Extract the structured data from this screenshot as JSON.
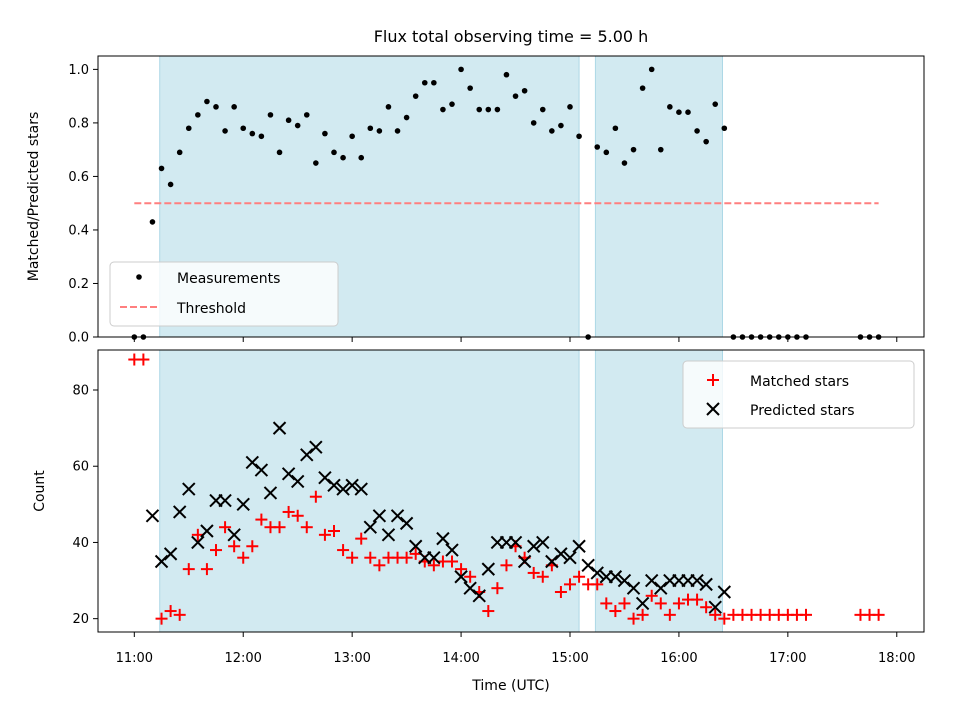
{
  "colors": {
    "shade": "#add8e6",
    "measurement": "#000000",
    "threshold": "#ff7f7f",
    "matched": "#ff0000",
    "predicted": "#000000"
  },
  "chart_data": [
    {
      "type": "scatter",
      "title": "Flux total observing time = 5.00 h",
      "xlabel": "",
      "ylabel": "Matched/Predicted stars",
      "xlim": [
        "10:40",
        "18:15"
      ],
      "ylim": [
        0,
        1.05
      ],
      "yticks": [
        "0.0",
        "0.2",
        "0.4",
        "0.6",
        "0.8",
        "1.0"
      ],
      "shaded_intervals": [
        [
          "11:14",
          "15:05"
        ],
        [
          "15:14",
          "16:24"
        ]
      ],
      "threshold": {
        "name": "Threshold",
        "value": 0.5,
        "x_range": [
          "11:00",
          "17:50"
        ]
      },
      "series": [
        {
          "name": "Measurements",
          "x": [
            "11:00",
            "11:05",
            "11:10",
            "11:15",
            "11:20",
            "11:25",
            "11:30",
            "11:35",
            "11:40",
            "11:45",
            "11:50",
            "11:55",
            "12:00",
            "12:05",
            "12:10",
            "12:15",
            "12:20",
            "12:25",
            "12:30",
            "12:35",
            "12:40",
            "12:45",
            "12:50",
            "12:55",
            "13:00",
            "13:05",
            "13:10",
            "13:15",
            "13:20",
            "13:25",
            "13:30",
            "13:35",
            "13:40",
            "13:45",
            "13:50",
            "13:55",
            "14:00",
            "14:05",
            "14:10",
            "14:15",
            "14:20",
            "14:25",
            "14:30",
            "14:35",
            "14:40",
            "14:45",
            "14:50",
            "14:55",
            "15:00",
            "15:05",
            "15:10",
            "15:15",
            "15:20",
            "15:25",
            "15:30",
            "15:35",
            "15:40",
            "15:45",
            "15:50",
            "15:55",
            "16:00",
            "16:05",
            "16:10",
            "16:15",
            "16:20",
            "16:25",
            "16:30",
            "16:35",
            "16:40",
            "16:45",
            "16:50",
            "16:55",
            "17:00",
            "17:05",
            "17:10",
            "17:40",
            "17:45",
            "17:50"
          ],
          "values": [
            0.0,
            0.0,
            0.43,
            0.63,
            0.57,
            0.69,
            0.78,
            0.83,
            0.88,
            0.86,
            0.77,
            0.86,
            0.78,
            0.76,
            0.75,
            0.83,
            0.69,
            0.81,
            0.79,
            0.83,
            0.65,
            0.76,
            0.69,
            0.67,
            0.75,
            0.67,
            0.78,
            0.77,
            0.86,
            0.77,
            0.82,
            0.9,
            0.95,
            0.95,
            0.85,
            0.87,
            1.0,
            0.93,
            0.85,
            0.85,
            0.85,
            0.98,
            0.9,
            0.92,
            0.8,
            0.85,
            0.77,
            0.79,
            0.86,
            0.75,
            0.0,
            0.71,
            0.69,
            0.78,
            0.65,
            0.7,
            0.93,
            1.0,
            0.7,
            0.86,
            0.84,
            0.84,
            0.77,
            0.73,
            0.87,
            0.78,
            0.0,
            0.0,
            0.0,
            0.0,
            0.0,
            0.0,
            0.0,
            0.0,
            0.0,
            0.0,
            0.0,
            0.0
          ]
        }
      ],
      "legend": {
        "position": "lower-left",
        "entries": [
          "Measurements",
          "Threshold"
        ]
      }
    },
    {
      "type": "scatter",
      "title": "",
      "xlabel": "Time (UTC)",
      "ylabel": "Count",
      "xlim": [
        "10:40",
        "18:15"
      ],
      "ylim": [
        16.5,
        90.5
      ],
      "xticks": [
        "11:00",
        "12:00",
        "13:00",
        "14:00",
        "15:00",
        "16:00",
        "17:00",
        "18:00"
      ],
      "yticks": [
        "20",
        "40",
        "60",
        "80"
      ],
      "shaded_intervals": [
        [
          "11:14",
          "15:05"
        ],
        [
          "15:14",
          "16:24"
        ]
      ],
      "series": [
        {
          "name": "Matched stars",
          "marker": "plus",
          "x": [
            "11:00",
            "11:05",
            "11:15",
            "11:20",
            "11:25",
            "11:30",
            "11:35",
            "11:40",
            "11:45",
            "11:50",
            "11:55",
            "12:00",
            "12:05",
            "12:10",
            "12:15",
            "12:20",
            "12:25",
            "12:30",
            "12:35",
            "12:40",
            "12:45",
            "12:50",
            "12:55",
            "13:00",
            "13:05",
            "13:10",
            "13:15",
            "13:20",
            "13:25",
            "13:30",
            "13:35",
            "13:40",
            "13:45",
            "13:50",
            "13:55",
            "14:00",
            "14:05",
            "14:10",
            "14:15",
            "14:20",
            "14:25",
            "14:30",
            "14:35",
            "14:40",
            "14:45",
            "14:50",
            "14:55",
            "15:00",
            "15:05",
            "15:10",
            "15:15",
            "15:20",
            "15:25",
            "15:30",
            "15:35",
            "15:40",
            "15:45",
            "15:50",
            "15:55",
            "16:00",
            "16:05",
            "16:10",
            "16:15",
            "16:20",
            "16:25",
            "16:30",
            "16:35",
            "16:40",
            "16:45",
            "16:50",
            "16:55",
            "17:00",
            "17:05",
            "17:10",
            "17:40",
            "17:45",
            "17:50"
          ],
          "values": [
            88,
            88,
            20,
            22,
            21,
            33,
            42,
            33,
            38,
            44,
            39,
            36,
            39,
            46,
            44,
            44,
            48,
            47,
            44,
            52,
            42,
            43,
            38,
            36,
            41,
            36,
            34,
            36,
            36,
            36,
            37,
            35,
            34,
            35,
            35,
            33,
            31,
            27,
            22,
            28,
            34,
            39,
            36,
            32,
            31,
            34,
            27,
            29,
            31,
            29,
            29,
            24,
            22,
            24,
            20,
            21,
            26,
            24,
            21,
            24,
            25,
            25,
            23,
            21,
            20,
            21,
            21,
            21,
            21,
            21,
            21,
            21,
            21,
            21,
            21,
            21,
            21
          ]
        },
        {
          "name": "Predicted stars",
          "marker": "x",
          "x": [
            "11:10",
            "11:15",
            "11:20",
            "11:25",
            "11:30",
            "11:35",
            "11:40",
            "11:45",
            "11:50",
            "11:55",
            "12:00",
            "12:05",
            "12:10",
            "12:15",
            "12:20",
            "12:25",
            "12:30",
            "12:35",
            "12:40",
            "12:45",
            "12:50",
            "12:55",
            "13:00",
            "13:05",
            "13:10",
            "13:15",
            "13:20",
            "13:25",
            "13:30",
            "13:35",
            "13:40",
            "13:45",
            "13:50",
            "13:55",
            "14:00",
            "14:05",
            "14:10",
            "14:15",
            "14:20",
            "14:25",
            "14:30",
            "14:35",
            "14:40",
            "14:45",
            "14:50",
            "14:55",
            "15:00",
            "15:05",
            "15:10",
            "15:15",
            "15:20",
            "15:25",
            "15:30",
            "15:35",
            "15:40",
            "15:45",
            "15:50",
            "15:55",
            "16:00",
            "16:05",
            "16:10",
            "16:15",
            "16:20",
            "16:25"
          ],
          "values": [
            47,
            35,
            37,
            48,
            54,
            40,
            43,
            51,
            51,
            42,
            50,
            61,
            59,
            53,
            70,
            58,
            56,
            63,
            65,
            57,
            55,
            54,
            55,
            54,
            44,
            47,
            42,
            47,
            45,
            39,
            36,
            36,
            41,
            38,
            31,
            28,
            26,
            33,
            40,
            40,
            40,
            35,
            39,
            40,
            35,
            37,
            36,
            39,
            34,
            32,
            31,
            31,
            30,
            28,
            24,
            30,
            28,
            30,
            30,
            30,
            30,
            29,
            23,
            27
          ]
        }
      ],
      "legend": {
        "position": "upper-right",
        "entries": [
          "Matched stars",
          "Predicted stars"
        ]
      }
    }
  ]
}
